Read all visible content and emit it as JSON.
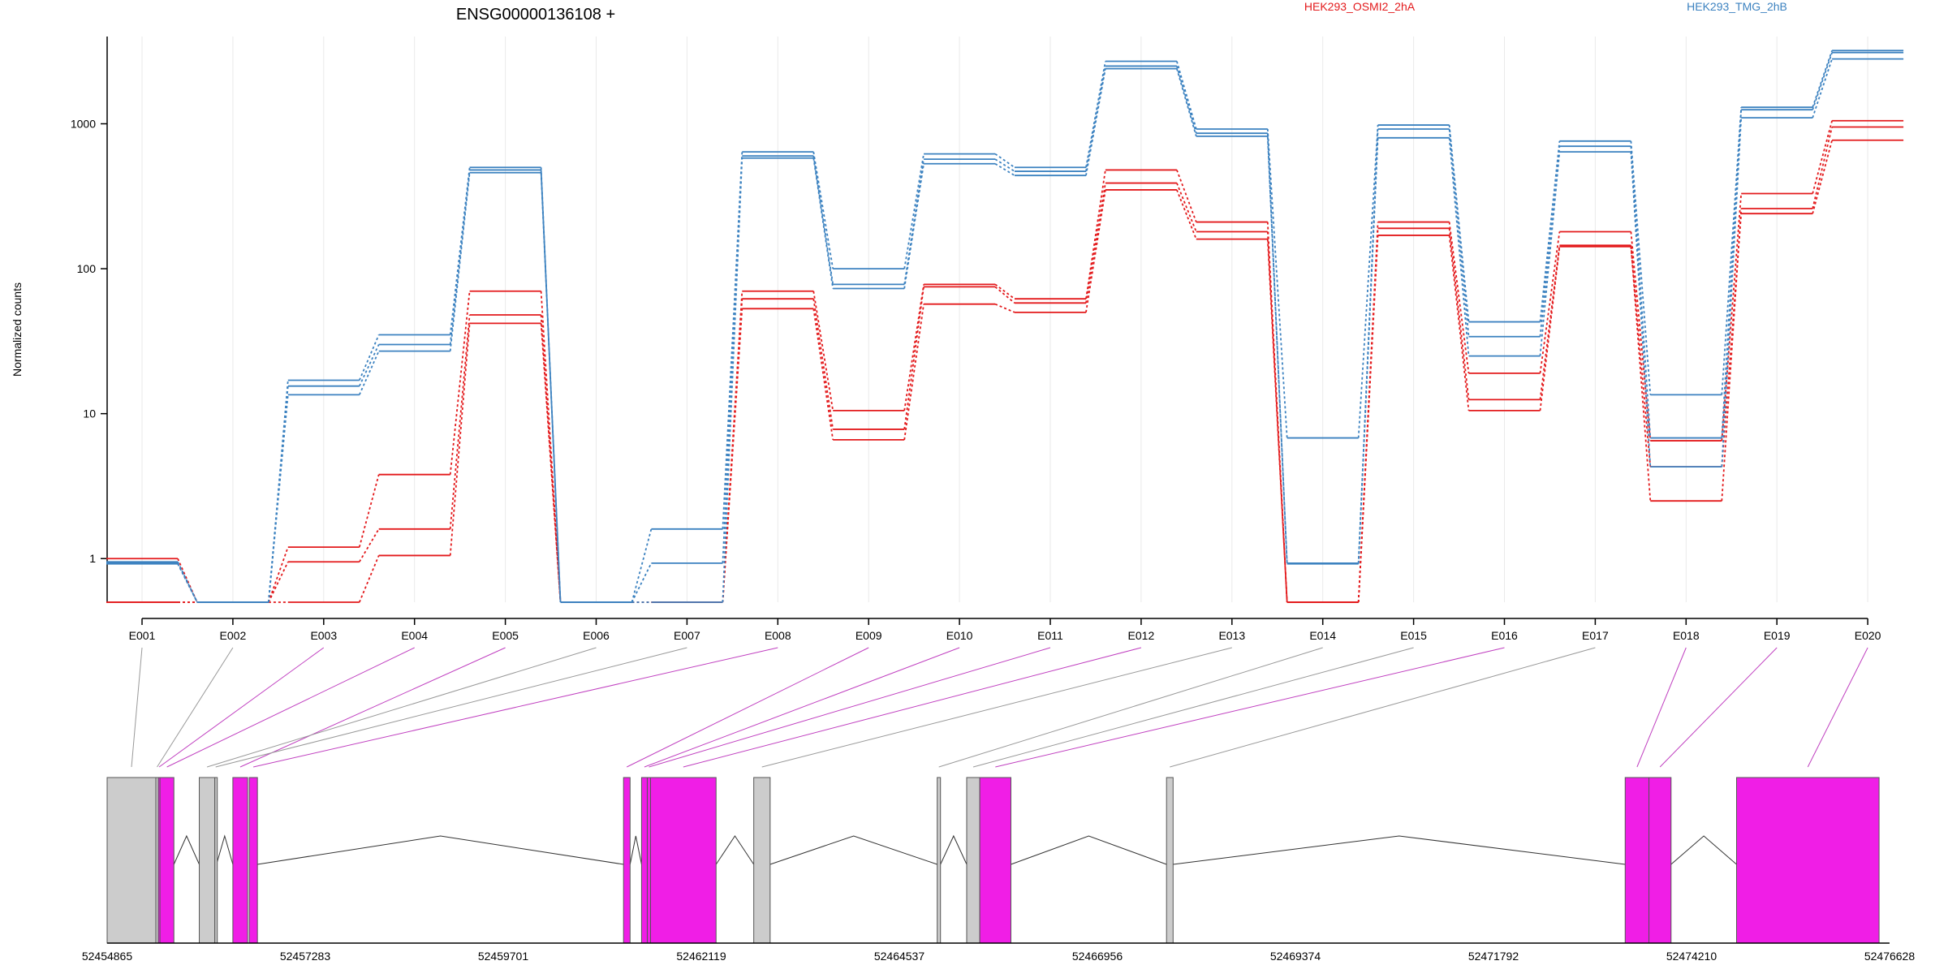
{
  "chart_data": {
    "type": "line",
    "title": "ENSG00000136108 +",
    "ylabel": "Normalized counts",
    "xlabel": "",
    "y_scale": "log",
    "ylim": [
      0.5,
      4000
    ],
    "y_ticks": [
      {
        "value": 1,
        "label": "1"
      },
      {
        "value": 10,
        "label": "10"
      },
      {
        "value": 100,
        "label": "100"
      },
      {
        "value": 1000,
        "label": "1000"
      }
    ],
    "legend": [
      {
        "name": "HEK293_OSMI2_2hA",
        "color": "#e31a1c"
      },
      {
        "name": "HEK293_TMG_2hB",
        "color": "#3c82c0"
      }
    ],
    "legend_placement": "top",
    "grid": "vertical-at-exons",
    "categories": [
      "E001",
      "E002",
      "E003",
      "E004",
      "E005",
      "E006",
      "E007",
      "E008",
      "E009",
      "E010",
      "E011",
      "E012",
      "E013",
      "E014",
      "E015",
      "E016",
      "E017",
      "E018",
      "E019",
      "E020"
    ],
    "series": [
      {
        "group": "HEK293_OSMI2_2hA",
        "color": "#e31a1c",
        "values": [
          1.0,
          0.5,
          1.2,
          3.8,
          70,
          0.5,
          0.5,
          70,
          10.5,
          78,
          62,
          480,
          210,
          0.5,
          210,
          19,
          180,
          6.5,
          330,
          1050
        ]
      },
      {
        "group": "HEK293_OSMI2_2hA",
        "color": "#e31a1c",
        "values": [
          0.5,
          0.5,
          0.95,
          1.6,
          48,
          0.5,
          0.5,
          62,
          7.8,
          75,
          58,
          390,
          180,
          0.5,
          190,
          12.5,
          145,
          2.5,
          260,
          950
        ]
      },
      {
        "group": "HEK293_OSMI2_2hA",
        "color": "#e31a1c",
        "values": [
          0.5,
          0.5,
          0.5,
          1.05,
          42,
          0.5,
          0.5,
          53,
          6.6,
          57,
          50,
          350,
          160,
          0.5,
          170,
          10.5,
          142,
          4.3,
          240,
          770
        ]
      },
      {
        "group": "HEK293_TMG_2hB",
        "color": "#3c82c0",
        "values": [
          0.95,
          0.5,
          17,
          35,
          500,
          0.5,
          1.6,
          640,
          100,
          620,
          500,
          2700,
          920,
          6.8,
          980,
          43,
          760,
          13.5,
          1300,
          3200
        ]
      },
      {
        "group": "HEK293_TMG_2hB",
        "color": "#3c82c0",
        "values": [
          0.93,
          0.5,
          15.5,
          30,
          480,
          0.5,
          0.93,
          600,
          78,
          570,
          470,
          2500,
          860,
          0.93,
          920,
          34,
          700,
          6.8,
          1250,
          3100
        ]
      },
      {
        "group": "HEK293_TMG_2hB",
        "color": "#3c82c0",
        "values": [
          0.92,
          0.5,
          13.5,
          27,
          460,
          0.5,
          0.5,
          580,
          73,
          530,
          440,
          2400,
          820,
          0.92,
          800,
          25,
          640,
          4.3,
          1100,
          2800
        ]
      }
    ],
    "exons": [
      {
        "id": "E001",
        "start": 52454865,
        "end": 52455460,
        "color": "#cccccc"
      },
      {
        "id": "E002",
        "start": 52455460,
        "end": 52455490,
        "color": "#cccccc"
      },
      {
        "id": "E003",
        "start": 52455490,
        "end": 52455510,
        "color": "#f01ee6"
      },
      {
        "id": "E004",
        "start": 52455510,
        "end": 52455680,
        "color": "#f01ee6"
      },
      {
        "id": "E005",
        "start": 52456400,
        "end": 52456580,
        "color": "#f01ee6"
      },
      {
        "id": "E006",
        "start": 52455990,
        "end": 52456180,
        "color": "#cccccc"
      },
      {
        "id": "E007",
        "start": 52456180,
        "end": 52456200,
        "color": "#cccccc"
      },
      {
        "id": "E008",
        "start": 52456600,
        "end": 52456700,
        "color": "#f01ee6"
      },
      {
        "id": "E009",
        "start": 52461170,
        "end": 52461250,
        "color": "#f01ee6"
      },
      {
        "id": "E010",
        "start": 52461390,
        "end": 52461460,
        "color": "#f01ee6"
      },
      {
        "id": "E011",
        "start": 52461460,
        "end": 52461500,
        "color": "#f01ee6"
      },
      {
        "id": "E012",
        "start": 52461500,
        "end": 52462300,
        "color": "#f01ee6"
      },
      {
        "id": "E013",
        "start": 52462760,
        "end": 52462960,
        "color": "#cccccc"
      },
      {
        "id": "E014",
        "start": 52465000,
        "end": 52465040,
        "color": "#cccccc"
      },
      {
        "id": "E015",
        "start": 52465360,
        "end": 52465520,
        "color": "#cccccc"
      },
      {
        "id": "E016",
        "start": 52465520,
        "end": 52465900,
        "color": "#f01ee6"
      },
      {
        "id": "E017",
        "start": 52467800,
        "end": 52467880,
        "color": "#cccccc"
      },
      {
        "id": "E018",
        "start": 52473400,
        "end": 52473690,
        "color": "#f01ee6"
      },
      {
        "id": "E019",
        "start": 52473690,
        "end": 52473960,
        "color": "#f01ee6"
      },
      {
        "id": "E020",
        "start": 52474760,
        "end": 52476500,
        "color": "#f01ee6"
      }
    ],
    "introns": [
      [
        52455680,
        52455990
      ],
      [
        52456200,
        52456400
      ],
      [
        52456700,
        52461170
      ],
      [
        52461250,
        52461390
      ],
      [
        52462300,
        52462760
      ],
      [
        52462960,
        52465000
      ],
      [
        52465040,
        52465360
      ],
      [
        52465900,
        52467800
      ],
      [
        52467880,
        52473400
      ],
      [
        52473960,
        52474760
      ]
    ],
    "genome_range": [
      52454865,
      52476628
    ],
    "genome_ticks": [
      "52454865",
      "52457283",
      "52459701",
      "52462119",
      "52464537",
      "52466956",
      "52469374",
      "52471792",
      "52474210",
      "52476628"
    ]
  }
}
